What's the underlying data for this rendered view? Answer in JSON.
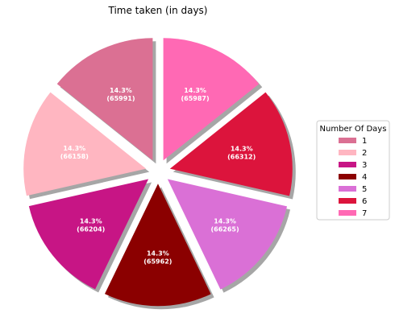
{
  "chart_data": {
    "type": "pie",
    "title": "Time taken (in days)",
    "legend_title": "Number Of Days",
    "legend_position": "right",
    "exploded": true,
    "shadow": true,
    "start_angle": 90,
    "slices": [
      {
        "label": "1",
        "value": 65991,
        "percent_label": "14.3%",
        "value_label": "(65991)",
        "color": "#DB7093"
      },
      {
        "label": "2",
        "value": 66158,
        "percent_label": "14.3%",
        "value_label": "(66158)",
        "color": "#FFB6C1"
      },
      {
        "label": "3",
        "value": 66204,
        "percent_label": "14.3%",
        "value_label": "(66204)",
        "color": "#C71585"
      },
      {
        "label": "4",
        "value": 65962,
        "percent_label": "14.3%",
        "value_label": "(65962)",
        "color": "#8B0000"
      },
      {
        "label": "5",
        "value": 66265,
        "percent_label": "14.3%",
        "value_label": "(66265)",
        "color": "#DA70D6"
      },
      {
        "label": "6",
        "value": 66312,
        "percent_label": "14.3%",
        "value_label": "(66312)",
        "color": "#DC143C"
      },
      {
        "label": "7",
        "value": 65987,
        "percent_label": "14.3%",
        "value_label": "(65987)",
        "color": "#FF69B4"
      }
    ]
  }
}
